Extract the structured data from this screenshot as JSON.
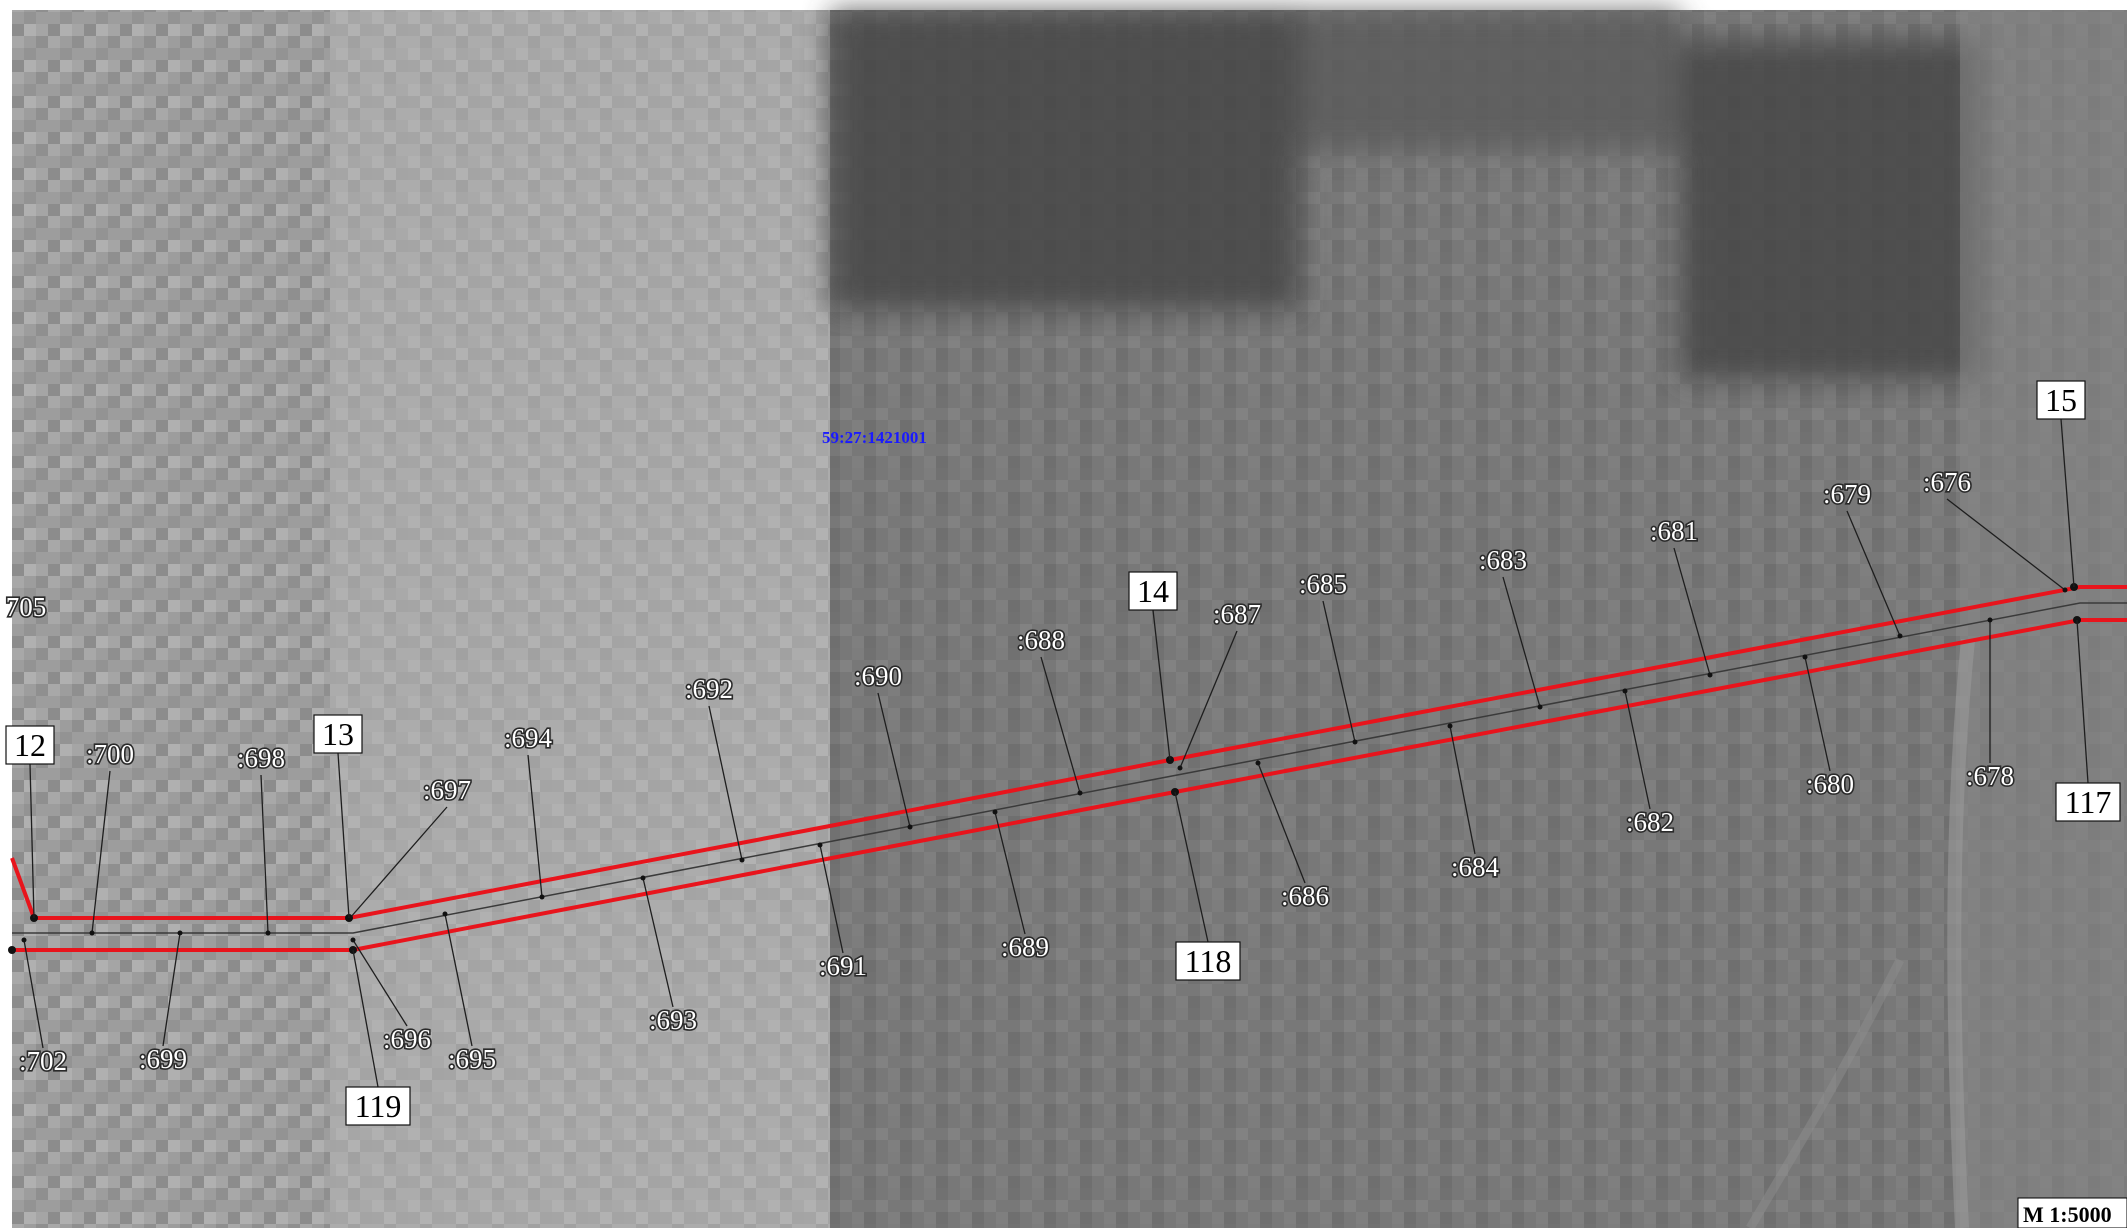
{
  "map": {
    "cadastral_number": "59:27:1421001",
    "scale": "M 1:5000",
    "colors": {
      "boundary": "#e8141c",
      "centerline": "#3a3a3a",
      "leader": "#1e1e1e",
      "vertex": "#111111"
    },
    "boxed_labels": [
      "12",
      "13",
      "14",
      "15",
      "117",
      "118",
      "119"
    ],
    "point_labels": [
      ":676",
      ":678",
      ":679",
      ":680",
      ":681",
      ":682",
      ":683",
      ":684",
      ":685",
      ":686",
      ":687",
      ":688",
      ":689",
      ":690",
      ":691",
      ":692",
      ":693",
      ":694",
      ":695",
      ":696",
      ":697",
      ":698",
      ":699",
      ":700",
      ":702",
      "705"
    ]
  }
}
